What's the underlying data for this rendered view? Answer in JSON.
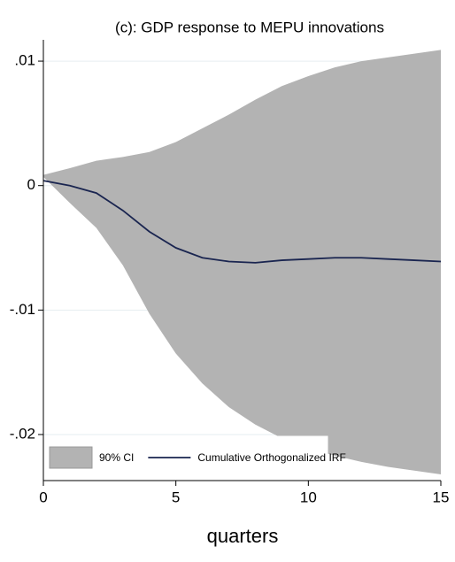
{
  "chart_data": {
    "type": "line",
    "title": "(c): GDP response to MEPU innovations",
    "x_label": "quarters",
    "x": [
      0,
      1,
      2,
      3,
      4,
      5,
      6,
      7,
      8,
      9,
      10,
      11,
      12,
      13,
      14,
      15
    ],
    "xlim": [
      0,
      15
    ],
    "xticks": [
      0,
      5,
      10,
      15
    ],
    "ylim": [
      -0.0237,
      0.011
    ],
    "yticks": [
      {
        "value": -0.02,
        "label": "-.02"
      },
      {
        "value": -0.01,
        "label": "-.01"
      },
      0,
      {
        "value": 0.01,
        "label": ".01"
      }
    ],
    "grid": true,
    "legend": "bottom-left",
    "series": [
      {
        "name": "90% CI",
        "kind": "band",
        "color": "#b3b3b3",
        "upper": [
          0.00086,
          0.0014,
          0.002,
          0.0023,
          0.0027,
          0.0035,
          0.0046,
          0.0057,
          0.0069,
          0.008,
          0.0088,
          0.0095,
          0.01,
          0.0103,
          0.0106,
          0.0109
        ],
        "lower": [
          0.0007,
          -0.0014,
          -0.0034,
          -0.0064,
          -0.0103,
          -0.0135,
          -0.0159,
          -0.0178,
          -0.0192,
          -0.0203,
          -0.0211,
          -0.0217,
          -0.0222,
          -0.0226,
          -0.0229,
          -0.0232
        ]
      },
      {
        "name": "Cumulative Orthogonalized IRF",
        "kind": "line",
        "color": "#1a2550",
        "values": [
          0.0004,
          0,
          -0.0006,
          -0.002,
          -0.0037,
          -0.005,
          -0.0058,
          -0.0061,
          -0.0062,
          -0.006,
          -0.0059,
          -0.0058,
          -0.0058,
          -0.0059,
          -0.006,
          -0.0061
        ]
      }
    ]
  }
}
